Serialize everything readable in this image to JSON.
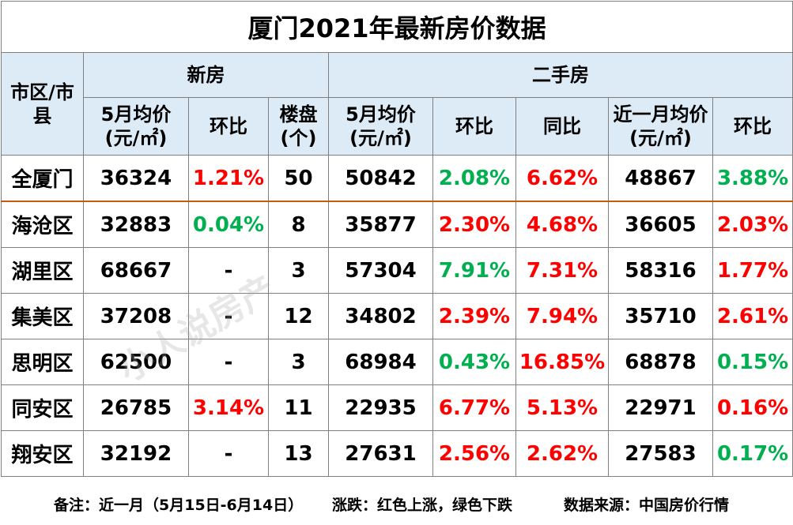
{
  "title": "厦门2021年最新房价数据",
  "headers": {
    "region": "市区/市县",
    "new_house": "新房",
    "second_hand": "二手房",
    "new_avg": "5月均价(元/㎡)",
    "new_mom": "环比",
    "new_projects": "楼盘(个)",
    "sh_avg": "5月均价(元/㎡)",
    "sh_mom": "环比",
    "sh_yoy": "同比",
    "sh_month_avg": "近一月均价(元/㎡)",
    "sh_month_mom": "环比"
  },
  "rows": [
    {
      "name": "全厦门",
      "new_avg": "36324",
      "new_mom": "1.21%",
      "new_mom_dir": "up",
      "projects": "50",
      "sh_avg": "50842",
      "sh_mom": "2.08%",
      "sh_mom_dir": "down",
      "sh_yoy": "6.62%",
      "sh_yoy_dir": "up",
      "month_avg": "48867",
      "month_mom": "3.88%",
      "month_mom_dir": "down"
    },
    {
      "name": "海沧区",
      "new_avg": "32883",
      "new_mom": "0.04%",
      "new_mom_dir": "down",
      "projects": "8",
      "sh_avg": "35877",
      "sh_mom": "2.30%",
      "sh_mom_dir": "up",
      "sh_yoy": "4.68%",
      "sh_yoy_dir": "up",
      "month_avg": "36605",
      "month_mom": "2.03%",
      "month_mom_dir": "up"
    },
    {
      "name": "湖里区",
      "new_avg": "68667",
      "new_mom": "-",
      "new_mom_dir": "none",
      "projects": "3",
      "sh_avg": "57304",
      "sh_mom": "7.91%",
      "sh_mom_dir": "down",
      "sh_yoy": "7.31%",
      "sh_yoy_dir": "up",
      "month_avg": "58316",
      "month_mom": "1.77%",
      "month_mom_dir": "up"
    },
    {
      "name": "集美区",
      "new_avg": "37208",
      "new_mom": "-",
      "new_mom_dir": "none",
      "projects": "12",
      "sh_avg": "34802",
      "sh_mom": "2.39%",
      "sh_mom_dir": "up",
      "sh_yoy": "7.94%",
      "sh_yoy_dir": "up",
      "month_avg": "35710",
      "month_mom": "2.61%",
      "month_mom_dir": "up"
    },
    {
      "name": "思明区",
      "new_avg": "62500",
      "new_mom": "-",
      "new_mom_dir": "none",
      "projects": "3",
      "sh_avg": "68984",
      "sh_mom": "0.43%",
      "sh_mom_dir": "down",
      "sh_yoy": "16.85%",
      "sh_yoy_dir": "up",
      "month_avg": "68878",
      "month_mom": "0.15%",
      "month_mom_dir": "down"
    },
    {
      "name": "同安区",
      "new_avg": "26785",
      "new_mom": "3.14%",
      "new_mom_dir": "up",
      "projects": "11",
      "sh_avg": "22935",
      "sh_mom": "6.77%",
      "sh_mom_dir": "up",
      "sh_yoy": "5.13%",
      "sh_yoy_dir": "up",
      "month_avg": "22971",
      "month_mom": "0.16%",
      "month_mom_dir": "up"
    },
    {
      "name": "翔安区",
      "new_avg": "32192",
      "new_mom": "-",
      "new_mom_dir": "none",
      "projects": "13",
      "sh_avg": "27631",
      "sh_mom": "2.56%",
      "sh_mom_dir": "up",
      "sh_yoy": "2.62%",
      "sh_yoy_dir": "up",
      "month_avg": "27583",
      "month_mom": "0.17%",
      "month_mom_dir": "down"
    }
  ],
  "footer": {
    "note": "备注：近一月（5月15日-6月14日）",
    "legend": "涨跌：红色上涨，绿色下跌",
    "source": "数据来源：中国房价行情"
  },
  "watermark": "小人说房产",
  "colors": {
    "up": "#ff0000",
    "down": "#00b050",
    "header_bg": "#ddebf7",
    "separator": "#c55a11"
  }
}
